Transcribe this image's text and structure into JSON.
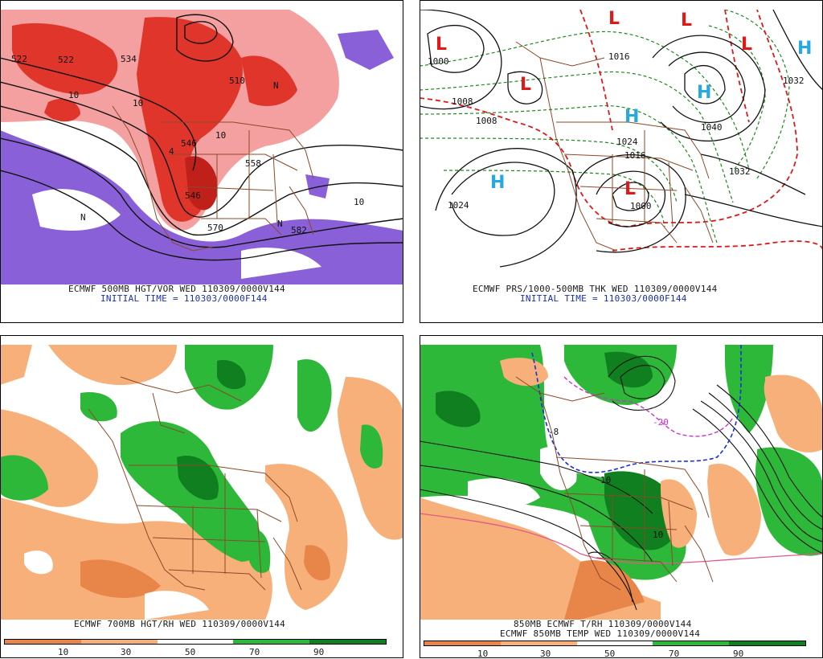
{
  "panels": {
    "p1": {
      "line1": "ECMWF 500MB HGT/VOR WED 110309/0000V144",
      "line2": "INITIAL TIME = 110303/0000F144"
    },
    "p2": {
      "line1": "ECMWF PRS/1000-500MB THK WED 110309/0000V144",
      "line2": "INITIAL TIME = 110303/0000F144"
    },
    "p3": {
      "line1": "ECMWF 700MB HGT/RH WED 110309/0000V144"
    },
    "p4": {
      "line1": "850MB ECMWF T/RH 110309/0000V144",
      "line2": "ECMWF 850MB TEMP WED 110309/0000V144"
    }
  },
  "colorbar": {
    "ticks": [
      "10",
      "30",
      "50",
      "70",
      "90"
    ],
    "colors": {
      "dry_dark": "#e8864a",
      "dry_light": "#f7b07a",
      "neutral": "#ffffff",
      "moist_light": "#2eb83a",
      "moist_dark": "#0f7f1f"
    }
  },
  "map_labels": {
    "p1": [
      "522",
      "522",
      "534",
      "510",
      "546",
      "546",
      "558",
      "570",
      "582",
      "10",
      "10",
      "10",
      "10",
      "N",
      "N",
      "N",
      "4"
    ],
    "p2": [
      "1000",
      "1008",
      "1008",
      "1016",
      "1024",
      "1024",
      "1032",
      "1032",
      "1040",
      "1016",
      "1000"
    ],
    "p4": [
      "10",
      "10",
      "-20",
      "-8"
    ]
  },
  "symbols": {
    "low": "L",
    "high": "H"
  },
  "colors": {
    "vor_red": "#e0352b",
    "vor_pink": "#f4a0a0",
    "vor_purple": "#8a60d8",
    "border": "#8b4a2a",
    "high_blue": "#28a8e0",
    "thk_red": "#e01818",
    "thk_green": "#1b8a1b"
  }
}
